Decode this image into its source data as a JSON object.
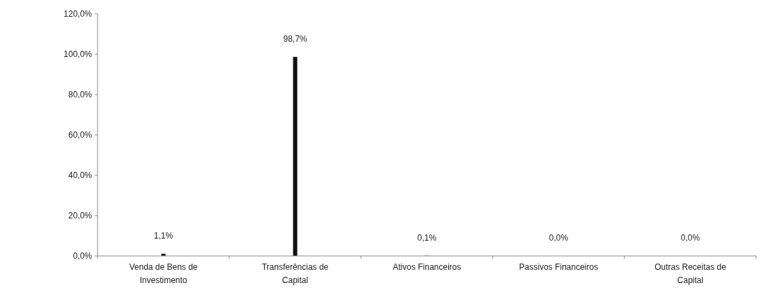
{
  "chart_data": {
    "type": "bar",
    "categories": [
      [
        "Venda de Bens de",
        "Investimento"
      ],
      [
        "Transferências de",
        "Capital"
      ],
      [
        "Ativos Financeiros"
      ],
      [
        "Passivos Financeiros"
      ],
      [
        "Outras Receitas de",
        "Capital"
      ]
    ],
    "values": [
      1.1,
      98.7,
      0.1,
      0.0,
      0.0
    ],
    "value_labels": [
      "1,1%",
      "98,7%",
      "0,1%",
      "0,0%",
      "0,0%"
    ],
    "color": "#111111",
    "ylim": [
      0,
      120
    ],
    "yticks": [
      {
        "value": 0,
        "label": "0,0%"
      },
      {
        "value": 20,
        "label": "20,0%"
      },
      {
        "value": 40,
        "label": "40,0%"
      },
      {
        "value": 60,
        "label": "60,0%"
      },
      {
        "value": 80,
        "label": "80,0%"
      },
      {
        "value": 100,
        "label": "100,0%"
      },
      {
        "value": 120,
        "label": "120,0%"
      }
    ],
    "grid": false
  }
}
